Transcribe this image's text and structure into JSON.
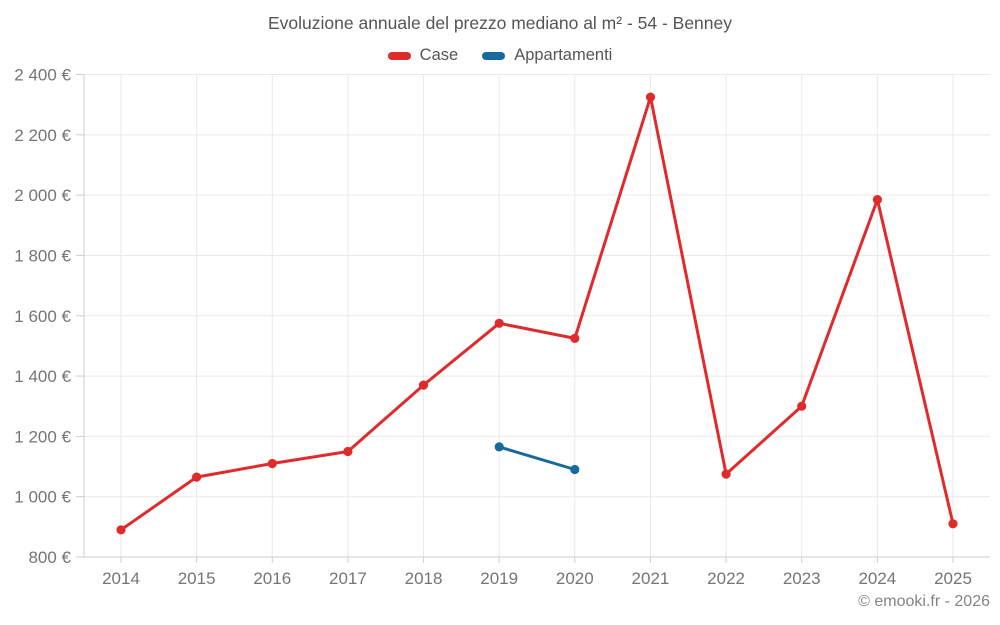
{
  "footer": {
    "copyright": "© emooki.fr - 2026"
  },
  "colors": {
    "grid": "#e9e9e9",
    "axis": "#cfcfcf",
    "tick_text": "#757575",
    "title_text": "#555555",
    "case_red": "#e02b2d",
    "appartamenti_blue": "#17699e"
  },
  "chart_data": {
    "type": "line",
    "title": "Evoluzione annuale del prezzo mediano al m² - 54 - Benney",
    "categories": [
      "2014",
      "2015",
      "2016",
      "2017",
      "2018",
      "2019",
      "2020",
      "2021",
      "2022",
      "2023",
      "2024",
      "2025"
    ],
    "series": [
      {
        "name": "Case",
        "color": "#e02b2d",
        "values": [
          890,
          1065,
          1110,
          1150,
          1370,
          1575,
          1525,
          2325,
          1075,
          1300,
          1985,
          910
        ]
      },
      {
        "name": "Appartamenti",
        "color": "#17699e",
        "values": [
          null,
          null,
          null,
          null,
          null,
          1165,
          1090,
          null,
          null,
          null,
          null,
          null
        ]
      }
    ],
    "xlabel": "",
    "ylabel": "",
    "ylim": [
      800,
      2400
    ],
    "yticks": [
      800,
      1000,
      1200,
      1400,
      1600,
      1800,
      2000,
      2200,
      2400
    ],
    "ytick_labels": [
      "800 €",
      "1 000 €",
      "1 200 €",
      "1 400 €",
      "1 600 €",
      "1 800 €",
      "2 000 €",
      "2 200 €",
      "2 400 €"
    ],
    "grid": true,
    "legend_position": "top"
  }
}
